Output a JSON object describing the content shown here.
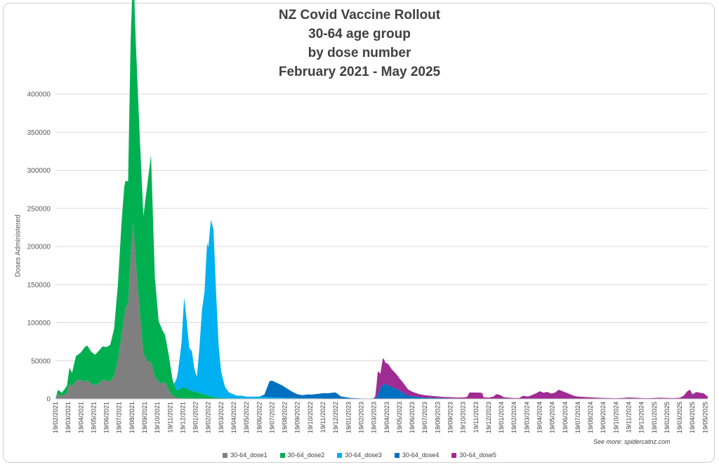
{
  "chart_data": {
    "type": "area",
    "title_lines": [
      "NZ Covid Vaccine Rollout",
      "30-64 age group",
      "by dose number",
      "February 2021 - May 2025"
    ],
    "xlabel": "",
    "ylabel": "Doses Administered",
    "ylim": [
      0,
      400000
    ],
    "yticks": [
      "0",
      "50000",
      "100000",
      "150000",
      "200000",
      "250000",
      "300000",
      "350000",
      "400000"
    ],
    "x_ticks": [
      "19/02/2021",
      "19/03/2021",
      "19/04/2021",
      "19/05/2021",
      "19/06/2021",
      "19/07/2021",
      "19/08/2021",
      "19/09/2021",
      "19/10/2021",
      "19/11/2021",
      "19/12/2021",
      "19/01/2022",
      "19/02/2022",
      "19/03/2022",
      "19/04/2022",
      "19/05/2022",
      "19/06/2022",
      "19/07/2022",
      "19/08/2022",
      "19/09/2022",
      "19/10/2022",
      "19/11/2022",
      "19/12/2022",
      "19/01/2023",
      "19/02/2023",
      "19/03/2023",
      "19/04/2023",
      "19/05/2023",
      "19/06/2023",
      "19/07/2023",
      "19/08/2023",
      "19/09/2023",
      "19/10/2023",
      "19/11/2023",
      "19/12/2023",
      "19/01/2024",
      "19/02/2024",
      "19/03/2024",
      "19/04/2024",
      "19/05/2024",
      "19/06/2024",
      "19/07/2024",
      "19/08/2024",
      "19/09/2024",
      "19/10/2024",
      "19/11/2024",
      "19/12/2024",
      "19/01/2025",
      "19/02/2025",
      "19/03/2025",
      "19/04/2025",
      "19/05/2025"
    ],
    "grid": true,
    "legend_position": "bottom",
    "stacked": true,
    "series": [
      {
        "name": "30-64_dose1",
        "color": "#7f7f7f",
        "points": [
          [
            0,
            0
          ],
          [
            0.2,
            6000
          ],
          [
            0.5,
            4000
          ],
          [
            0.9,
            8000
          ],
          [
            1.1,
            20000
          ],
          [
            1.3,
            16000
          ],
          [
            1.6,
            24000
          ],
          [
            2.0,
            25000
          ],
          [
            2.3,
            22000
          ],
          [
            2.5,
            25000
          ],
          [
            2.8,
            20000
          ],
          [
            3.1,
            18000
          ],
          [
            3.4,
            20000
          ],
          [
            3.7,
            25000
          ],
          [
            4.0,
            24000
          ],
          [
            4.3,
            23000
          ],
          [
            4.6,
            30000
          ],
          [
            4.9,
            50000
          ],
          [
            5.2,
            85000
          ],
          [
            5.5,
            120000
          ],
          [
            5.7,
            125000
          ],
          [
            5.9,
            185000
          ],
          [
            6.1,
            232000
          ],
          [
            6.3,
            180000
          ],
          [
            6.6,
            120000
          ],
          [
            6.9,
            60000
          ],
          [
            7.2,
            50000
          ],
          [
            7.5,
            48000
          ],
          [
            7.8,
            30000
          ],
          [
            8.1,
            22000
          ],
          [
            8.4,
            20000
          ],
          [
            8.6,
            22000
          ],
          [
            8.9,
            12000
          ],
          [
            9.1,
            6000
          ],
          [
            9.4,
            2000
          ],
          [
            9.7,
            1000
          ],
          [
            10.2,
            500
          ],
          [
            11,
            200
          ],
          [
            12,
            100
          ],
          [
            13,
            50
          ],
          [
            14,
            0
          ],
          [
            51.2,
            0
          ]
        ]
      },
      {
        "name": "30-64_dose2",
        "color": "#00b050",
        "points": [
          [
            0,
            0
          ],
          [
            0.2,
            6000
          ],
          [
            0.5,
            4000
          ],
          [
            0.9,
            9000
          ],
          [
            1.1,
            21000
          ],
          [
            1.3,
            18000
          ],
          [
            1.6,
            32000
          ],
          [
            2.0,
            36000
          ],
          [
            2.3,
            46000
          ],
          [
            2.5,
            45000
          ],
          [
            2.8,
            42000
          ],
          [
            3.1,
            40000
          ],
          [
            3.4,
            43000
          ],
          [
            3.7,
            44000
          ],
          [
            4.0,
            44000
          ],
          [
            4.3,
            48000
          ],
          [
            4.6,
            62000
          ],
          [
            4.9,
            100000
          ],
          [
            5.2,
            150000
          ],
          [
            5.4,
            170000
          ],
          [
            5.7,
            160000
          ],
          [
            5.9,
            285000
          ],
          [
            6.1,
            338000
          ],
          [
            6.3,
            290000
          ],
          [
            6.6,
            230000
          ],
          [
            6.9,
            180000
          ],
          [
            7.2,
            230000
          ],
          [
            7.5,
            272000
          ],
          [
            7.8,
            130000
          ],
          [
            8.1,
            80000
          ],
          [
            8.4,
            70000
          ],
          [
            8.6,
            62000
          ],
          [
            8.9,
            45000
          ],
          [
            9.2,
            20000
          ],
          [
            9.5,
            10000
          ],
          [
            9.8,
            12000
          ],
          [
            10.0,
            15000
          ],
          [
            10.4,
            12000
          ],
          [
            10.8,
            10000
          ],
          [
            11.2,
            8000
          ],
          [
            11.6,
            6000
          ],
          [
            12.0,
            4000
          ],
          [
            12.5,
            2000
          ],
          [
            13.0,
            1000
          ],
          [
            14.0,
            500
          ],
          [
            15,
            0
          ],
          [
            51.2,
            0
          ]
        ]
      },
      {
        "name": "30-64_dose3",
        "color": "#00b0f0",
        "points": [
          [
            0,
            0
          ],
          [
            9.3,
            0
          ],
          [
            9.6,
            22000
          ],
          [
            9.9,
            60000
          ],
          [
            10.1,
            118000
          ],
          [
            10.3,
            90000
          ],
          [
            10.5,
            55000
          ],
          [
            10.7,
            52000
          ],
          [
            10.9,
            30000
          ],
          [
            11.1,
            20000
          ],
          [
            11.3,
            60000
          ],
          [
            11.5,
            110000
          ],
          [
            11.7,
            135000
          ],
          [
            11.9,
            200000
          ],
          [
            12.0,
            195000
          ],
          [
            12.2,
            232000
          ],
          [
            12.4,
            220000
          ],
          [
            12.6,
            140000
          ],
          [
            12.8,
            70000
          ],
          [
            13.0,
            35000
          ],
          [
            13.3,
            15000
          ],
          [
            13.6,
            8000
          ],
          [
            13.9,
            6000
          ],
          [
            14.2,
            4000
          ],
          [
            14.6,
            4000
          ],
          [
            15,
            3000
          ],
          [
            16,
            3000
          ],
          [
            17,
            2000
          ],
          [
            18,
            1500
          ],
          [
            19,
            1000
          ],
          [
            20,
            800
          ],
          [
            21,
            500
          ],
          [
            22,
            300
          ],
          [
            23,
            200
          ],
          [
            24,
            100
          ],
          [
            25,
            100
          ],
          [
            26,
            50
          ],
          [
            27,
            0
          ],
          [
            51.2,
            0
          ]
        ]
      },
      {
        "name": "30-64_dose4",
        "color": "#0070c0",
        "points": [
          [
            0,
            0
          ],
          [
            16.0,
            0
          ],
          [
            16.4,
            3000
          ],
          [
            16.8,
            21000
          ],
          [
            17.0,
            22000
          ],
          [
            17.4,
            19000
          ],
          [
            17.8,
            16000
          ],
          [
            18.2,
            12000
          ],
          [
            18.6,
            8000
          ],
          [
            19.0,
            5000
          ],
          [
            19.4,
            4000
          ],
          [
            19.8,
            5000
          ],
          [
            20.2,
            5000
          ],
          [
            20.6,
            6000
          ],
          [
            21.0,
            7000
          ],
          [
            21.4,
            7000
          ],
          [
            21.8,
            8000
          ],
          [
            22.0,
            8000
          ],
          [
            22.4,
            3000
          ],
          [
            22.8,
            2000
          ],
          [
            23.2,
            1000
          ],
          [
            23.6,
            800
          ],
          [
            24.0,
            500
          ],
          [
            24.6,
            400
          ],
          [
            25.0,
            500
          ],
          [
            25.2,
            2000
          ],
          [
            25.5,
            15000
          ],
          [
            25.8,
            20000
          ],
          [
            26.1,
            18000
          ],
          [
            26.5,
            15000
          ],
          [
            26.9,
            12000
          ],
          [
            27.3,
            8000
          ],
          [
            27.7,
            4000
          ],
          [
            28.2,
            3000
          ],
          [
            28.8,
            2000
          ],
          [
            29.5,
            1500
          ],
          [
            30.5,
            1000
          ],
          [
            31.5,
            600
          ],
          [
            32.5,
            400
          ],
          [
            34,
            200
          ],
          [
            36,
            100
          ],
          [
            38,
            80
          ],
          [
            40,
            60
          ],
          [
            44,
            40
          ],
          [
            48,
            20
          ],
          [
            51.2,
            0
          ]
        ]
      },
      {
        "name": "30-64_dose5",
        "color": "#a02b93",
        "points": [
          [
            0,
            0
          ],
          [
            24.9,
            0
          ],
          [
            25.1,
            2000
          ],
          [
            25.3,
            30000
          ],
          [
            25.5,
            18000
          ],
          [
            25.7,
            35000
          ],
          [
            25.9,
            28000
          ],
          [
            26.1,
            28000
          ],
          [
            26.4,
            23000
          ],
          [
            26.7,
            20000
          ],
          [
            27.0,
            16000
          ],
          [
            27.3,
            13000
          ],
          [
            27.6,
            9000
          ],
          [
            28.0,
            6000
          ],
          [
            28.5,
            4000
          ],
          [
            29.0,
            3000
          ],
          [
            29.5,
            2500
          ],
          [
            30.0,
            2000
          ],
          [
            30.5,
            1500
          ],
          [
            31.0,
            1500
          ],
          [
            31.5,
            1200
          ],
          [
            32.0,
            1500
          ],
          [
            32.3,
            2000
          ],
          [
            32.5,
            8000
          ],
          [
            32.8,
            8000
          ],
          [
            33.2,
            8000
          ],
          [
            33.5,
            7500
          ],
          [
            33.6,
            2000
          ],
          [
            34.0,
            1500
          ],
          [
            34.4,
            3000
          ],
          [
            34.6,
            6000
          ],
          [
            34.9,
            5000
          ],
          [
            35.2,
            2000
          ],
          [
            35.6,
            1500
          ],
          [
            36.0,
            1000
          ],
          [
            36.4,
            1000
          ],
          [
            36.7,
            4000
          ],
          [
            37.1,
            3000
          ],
          [
            37.4,
            5000
          ],
          [
            37.7,
            7000
          ],
          [
            38.0,
            10000
          ],
          [
            38.3,
            8000
          ],
          [
            38.6,
            9000
          ],
          [
            38.9,
            7000
          ],
          [
            39.2,
            8000
          ],
          [
            39.5,
            12000
          ],
          [
            39.8,
            10000
          ],
          [
            40.1,
            8000
          ],
          [
            40.4,
            6000
          ],
          [
            40.7,
            4000
          ],
          [
            41.0,
            3000
          ],
          [
            41.5,
            2500
          ],
          [
            42.0,
            2000
          ],
          [
            42.5,
            1500
          ],
          [
            43.0,
            1200
          ],
          [
            43.5,
            1000
          ],
          [
            44.0,
            800
          ],
          [
            44.5,
            1200
          ],
          [
            45.0,
            1800
          ],
          [
            45.5,
            1500
          ],
          [
            46.0,
            1000
          ],
          [
            46.5,
            800
          ],
          [
            47.0,
            1200
          ],
          [
            47.5,
            1500
          ],
          [
            48.0,
            1200
          ],
          [
            48.5,
            1000
          ],
          [
            49.0,
            1500
          ],
          [
            49.3,
            4000
          ],
          [
            49.6,
            10000
          ],
          [
            49.8,
            12000
          ],
          [
            50.0,
            6000
          ],
          [
            50.3,
            9000
          ],
          [
            50.6,
            8000
          ],
          [
            50.9,
            7000
          ],
          [
            51.2,
            3000
          ]
        ]
      }
    ]
  },
  "credit": "See more: spidercatnz.com"
}
